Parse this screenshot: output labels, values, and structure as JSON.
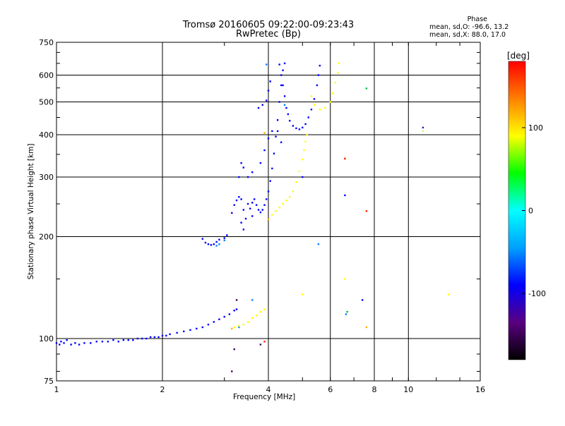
{
  "chart_data": {
    "type": "scatter",
    "title": "Tromsø 20160605 09:22:00-09:23:43",
    "subtitle": "RwPretec (Bp)",
    "xlabel": "Frequency [MHz]",
    "ylabel": "Stationary phase Virtual Height [km]",
    "x_scale": "log",
    "y_scale": "log",
    "xlim": [
      1,
      16
    ],
    "ylim": [
      75,
      750
    ],
    "x_ticks": [
      "1",
      "2",
      "4",
      "6",
      "8",
      "10",
      "16"
    ],
    "x_grid": [
      1,
      2,
      4,
      6,
      8,
      10,
      16
    ],
    "y_ticks": [
      "75",
      "100",
      "200",
      "300",
      "400",
      "500",
      "600",
      "750"
    ],
    "y_grid": [
      75,
      100,
      200,
      300,
      400,
      500,
      600,
      750
    ],
    "grid": true,
    "phase_stats": {
      "header": "Phase",
      "line_o": "mean, sd,O: -96.6, 13.2",
      "line_x": "mean, sd,X:  88.0, 17.0"
    },
    "colorbar": {
      "label": "[deg]",
      "ticks": [
        "100",
        "0",
        "-100"
      ],
      "tick_values": [
        100,
        0,
        -100
      ],
      "range": [
        -180,
        180
      ],
      "stops": [
        "#000000",
        "#5a0080",
        "#0000ff",
        "#00a0ff",
        "#00ffff",
        "#00ff00",
        "#ffff00",
        "#ff8000",
        "#ff0000"
      ]
    },
    "series": [
      {
        "phase": -97,
        "color": "#0000ff",
        "points": [
          [
            1.0,
            97
          ],
          [
            1.02,
            96
          ],
          [
            1.03,
            98
          ],
          [
            1.05,
            97
          ],
          [
            1.07,
            99
          ],
          [
            1.1,
            96
          ],
          [
            1.13,
            97
          ],
          [
            1.16,
            96
          ],
          [
            1.2,
            97
          ],
          [
            1.25,
            97
          ],
          [
            1.3,
            98
          ],
          [
            1.35,
            98
          ],
          [
            1.4,
            98
          ],
          [
            1.45,
            99
          ],
          [
            1.5,
            98
          ],
          [
            1.55,
            99
          ],
          [
            1.6,
            99
          ],
          [
            1.65,
            99
          ],
          [
            1.7,
            100
          ],
          [
            1.75,
            100
          ],
          [
            1.8,
            100
          ],
          [
            1.85,
            101
          ],
          [
            1.9,
            101
          ],
          [
            1.95,
            101
          ],
          [
            2.0,
            102
          ],
          [
            2.05,
            102
          ],
          [
            2.1,
            103
          ],
          [
            2.2,
            104
          ],
          [
            2.3,
            105
          ],
          [
            2.4,
            106
          ],
          [
            2.5,
            107
          ],
          [
            2.6,
            108
          ],
          [
            2.7,
            110
          ],
          [
            2.8,
            112
          ],
          [
            2.9,
            114
          ],
          [
            3.0,
            116
          ],
          [
            3.1,
            118
          ],
          [
            3.2,
            121
          ],
          [
            3.25,
            122
          ],
          [
            2.6,
            197
          ],
          [
            2.65,
            192
          ],
          [
            2.7,
            190
          ],
          [
            2.75,
            189
          ],
          [
            2.8,
            190
          ],
          [
            2.85,
            193
          ],
          [
            2.9,
            196
          ],
          [
            3.0,
            198
          ],
          [
            3.05,
            202
          ],
          [
            3.15,
            235
          ],
          [
            3.2,
            248
          ],
          [
            3.25,
            256
          ],
          [
            3.3,
            262
          ],
          [
            3.35,
            258
          ],
          [
            3.35,
            220
          ],
          [
            3.4,
            210
          ],
          [
            3.4,
            240
          ],
          [
            3.45,
            226
          ],
          [
            3.5,
            250
          ],
          [
            3.55,
            242
          ],
          [
            3.6,
            252
          ],
          [
            3.6,
            230
          ],
          [
            3.65,
            258
          ],
          [
            3.7,
            248
          ],
          [
            3.75,
            240
          ],
          [
            3.8,
            236
          ],
          [
            3.85,
            240
          ],
          [
            3.9,
            248
          ],
          [
            3.95,
            258
          ],
          [
            4.0,
            272
          ],
          [
            4.05,
            292
          ],
          [
            4.1,
            318
          ],
          [
            4.15,
            352
          ],
          [
            4.2,
            395
          ],
          [
            4.25,
            442
          ],
          [
            4.3,
            500
          ],
          [
            4.35,
            560
          ],
          [
            4.4,
            620
          ],
          [
            4.45,
            650
          ],
          [
            3.3,
            300
          ],
          [
            3.35,
            330
          ],
          [
            3.4,
            320
          ],
          [
            3.5,
            300
          ],
          [
            3.6,
            310
          ],
          [
            3.8,
            330
          ],
          [
            3.9,
            360
          ],
          [
            4.0,
            390
          ],
          [
            4.1,
            410
          ],
          [
            4.3,
            645
          ],
          [
            4.35,
            600
          ],
          [
            4.4,
            560
          ],
          [
            4.45,
            520
          ],
          [
            4.5,
            480
          ],
          [
            4.55,
            460
          ],
          [
            4.6,
            440
          ],
          [
            4.7,
            425
          ],
          [
            4.8,
            418
          ],
          [
            4.9,
            415
          ],
          [
            5.0,
            420
          ],
          [
            5.1,
            430
          ],
          [
            5.2,
            450
          ],
          [
            5.3,
            475
          ],
          [
            5.4,
            510
          ],
          [
            5.5,
            560
          ],
          [
            5.55,
            600
          ],
          [
            5.6,
            640
          ],
          [
            3.75,
            480
          ],
          [
            3.85,
            490
          ],
          [
            3.95,
            505
          ],
          [
            4.0,
            540
          ],
          [
            4.05,
            575
          ],
          [
            4.25,
            410
          ],
          [
            4.35,
            380
          ],
          [
            5.0,
            300
          ],
          [
            6.6,
            265
          ],
          [
            7.4,
            130
          ]
        ]
      },
      {
        "phase": -60,
        "color": "#0080ff",
        "points": [
          [
            2.85,
            188
          ],
          [
            2.9,
            190
          ],
          [
            3.0,
            195
          ],
          [
            3.6,
            130
          ],
          [
            3.95,
            645
          ],
          [
            4.45,
            490
          ],
          [
            5.55,
            190
          ],
          [
            6.65,
            118
          ],
          [
            3.3,
            108
          ]
        ]
      },
      {
        "phase": 100,
        "color": "#ffff00",
        "points": [
          [
            3.2,
            108
          ],
          [
            3.3,
            109
          ],
          [
            3.4,
            110
          ],
          [
            3.5,
            112
          ],
          [
            3.6,
            115
          ],
          [
            3.7,
            117
          ],
          [
            3.8,
            120
          ],
          [
            3.9,
            122
          ],
          [
            4.1,
            232
          ],
          [
            4.2,
            238
          ],
          [
            4.3,
            244
          ],
          [
            4.4,
            250
          ],
          [
            4.5,
            256
          ],
          [
            4.6,
            262
          ],
          [
            4.7,
            272
          ],
          [
            4.8,
            290
          ],
          [
            4.9,
            312
          ],
          [
            5.0,
            338
          ],
          [
            5.05,
            360
          ],
          [
            5.1,
            382
          ],
          [
            5.15,
            400
          ],
          [
            5.3,
            520
          ],
          [
            5.4,
            490
          ],
          [
            5.6,
            475
          ],
          [
            5.8,
            480
          ],
          [
            6.0,
            500
          ],
          [
            6.1,
            530
          ],
          [
            6.2,
            570
          ],
          [
            6.3,
            610
          ],
          [
            6.35,
            650
          ],
          [
            5.0,
            135
          ],
          [
            6.6,
            150
          ],
          [
            13.0,
            135
          ]
        ]
      },
      {
        "phase": 130,
        "color": "#ffb000",
        "points": [
          [
            3.15,
            107
          ],
          [
            4.0,
            225
          ],
          [
            6.6,
            340
          ],
          [
            7.6,
            108
          ],
          [
            3.9,
            405
          ]
        ]
      },
      {
        "phase": 170,
        "color": "#ff2000",
        "points": [
          [
            7.6,
            238
          ],
          [
            6.6,
            340
          ],
          [
            3.9,
            98
          ]
        ]
      },
      {
        "phase": 20,
        "color": "#00c040",
        "points": [
          [
            7.6,
            548
          ],
          [
            6.7,
            120
          ]
        ]
      },
      {
        "phase": -135,
        "color": "#400060",
        "points": [
          [
            3.2,
            93
          ],
          [
            3.15,
            80
          ],
          [
            3.25,
            130
          ],
          [
            3.8,
            96
          ]
        ]
      },
      {
        "phase": 40,
        "color": "#c0ff60",
        "points": [
          [
            11.0,
            410
          ]
        ]
      },
      {
        "phase": -100,
        "color": "#2020c0",
        "points": [
          [
            11.0,
            420
          ]
        ]
      }
    ]
  }
}
